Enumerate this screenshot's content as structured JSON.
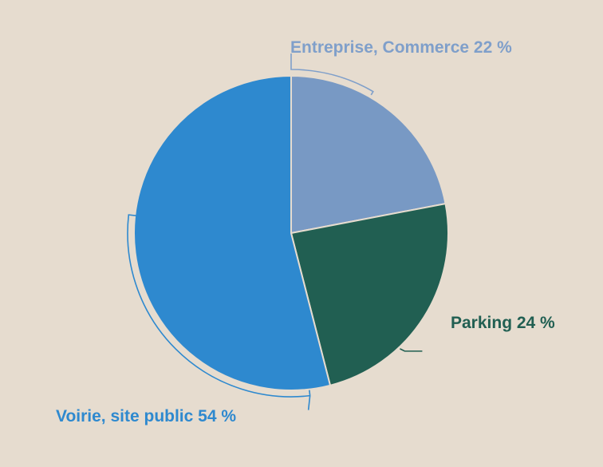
{
  "chart_data": {
    "type": "pie",
    "start_angle_deg": 0,
    "direction": "clockwise",
    "slices": [
      {
        "label": "Entreprise, Commerce",
        "value": 22,
        "display": "Entreprise, Commerce 22 %",
        "color": "#7899c4",
        "label_color": "#7f9fca"
      },
      {
        "label": "Parking",
        "value": 24,
        "display": "Parking 24 %",
        "color": "#215f52",
        "label_color": "#215f52"
      },
      {
        "label": "Voirie, site public",
        "value": 54,
        "display": "Voirie, site public 54 %",
        "color": "#2e89cf",
        "label_color": "#2e89cf"
      }
    ],
    "legend": "none",
    "background": "#e6dccf",
    "slice_border": "#e6dccf"
  }
}
